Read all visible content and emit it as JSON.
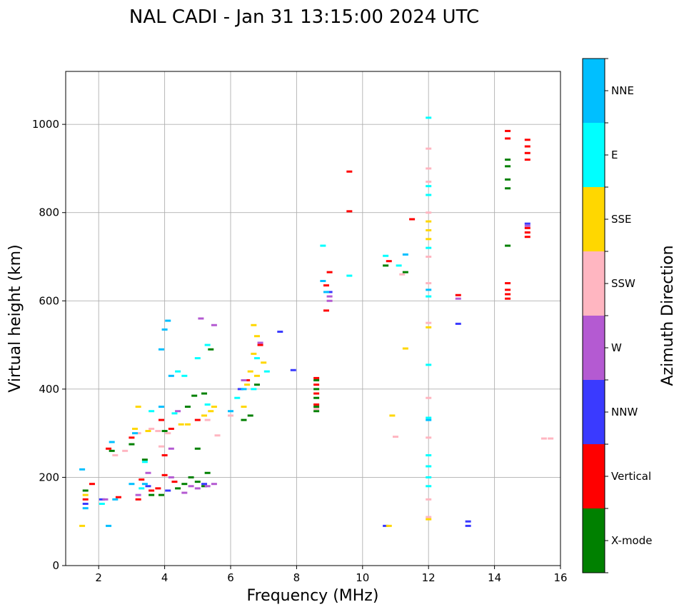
{
  "chart_data": {
    "type": "scatter",
    "title": "NAL CADI - Jan 31 13:15:00 2024 UTC",
    "xlabel": "Frequency (MHz)",
    "ylabel": "Virtual height (km)",
    "xlim": [
      1,
      16
    ],
    "ylim": [
      0,
      1120
    ],
    "xticks": [
      2,
      4,
      6,
      8,
      10,
      12,
      14,
      16
    ],
    "yticks": [
      0,
      200,
      400,
      600,
      800,
      1000
    ],
    "grid": true,
    "colorbar": {
      "label": "Azimuth Direction",
      "categories": [
        {
          "name": "X-mode",
          "color": "#008000"
        },
        {
          "name": "Vertical",
          "color": "#ff0000"
        },
        {
          "name": "NNW",
          "color": "#3a3aff"
        },
        {
          "name": "W",
          "color": "#b45ad2"
        },
        {
          "name": "SSW",
          "color": "#ffb6c1"
        },
        {
          "name": "SSE",
          "color": "#ffd700"
        },
        {
          "name": "E",
          "color": "#00ffff"
        },
        {
          "name": "NNE",
          "color": "#00bfff"
        }
      ]
    },
    "series": [
      {
        "name": "X-mode",
        "points": [
          [
            1.6,
            170
          ],
          [
            2.4,
            260
          ],
          [
            3.0,
            275
          ],
          [
            3.4,
            240
          ],
          [
            3.9,
            160
          ],
          [
            4.4,
            175
          ],
          [
            4.6,
            185
          ],
          [
            4.8,
            200
          ],
          [
            5.0,
            190
          ],
          [
            5.2,
            180
          ],
          [
            5.3,
            210
          ],
          [
            4.7,
            360
          ],
          [
            4.9,
            385
          ],
          [
            5.2,
            390
          ],
          [
            5.4,
            490
          ],
          [
            6.4,
            330
          ],
          [
            6.6,
            340
          ],
          [
            6.8,
            410
          ],
          [
            8.6,
            360
          ],
          [
            8.6,
            380
          ],
          [
            8.6,
            400
          ],
          [
            8.6,
            420
          ],
          [
            8.6,
            350
          ],
          [
            10.7,
            680
          ],
          [
            11.3,
            665
          ],
          [
            14.4,
            855
          ],
          [
            14.4,
            875
          ],
          [
            14.4,
            905
          ],
          [
            14.4,
            920
          ],
          [
            14.4,
            725
          ],
          [
            5.0,
            265
          ],
          [
            4.0,
            305
          ],
          [
            3.6,
            160
          ]
        ]
      },
      {
        "name": "Vertical",
        "points": [
          [
            1.6,
            150
          ],
          [
            1.8,
            185
          ],
          [
            2.3,
            265
          ],
          [
            2.6,
            155
          ],
          [
            3.0,
            290
          ],
          [
            3.3,
            195
          ],
          [
            3.6,
            170
          ],
          [
            3.8,
            175
          ],
          [
            4.0,
            205
          ],
          [
            4.0,
            250
          ],
          [
            4.2,
            310
          ],
          [
            4.3,
            190
          ],
          [
            3.9,
            330
          ],
          [
            5.0,
            330
          ],
          [
            6.5,
            420
          ],
          [
            6.9,
            500
          ],
          [
            8.6,
            365
          ],
          [
            8.6,
            390
          ],
          [
            8.6,
            410
          ],
          [
            8.6,
            425
          ],
          [
            8.9,
            635
          ],
          [
            9.0,
            665
          ],
          [
            8.9,
            578
          ],
          [
            9.6,
            893
          ],
          [
            9.6,
            803
          ],
          [
            10.8,
            690
          ],
          [
            11.5,
            785
          ],
          [
            12.9,
            613
          ],
          [
            14.4,
            605
          ],
          [
            14.4,
            615
          ],
          [
            14.4,
            625
          ],
          [
            14.4,
            640
          ],
          [
            14.4,
            968
          ],
          [
            14.4,
            985
          ],
          [
            15.0,
            920
          ],
          [
            15.0,
            935
          ],
          [
            15.0,
            950
          ],
          [
            15.0,
            965
          ],
          [
            15.0,
            745
          ],
          [
            15.0,
            755
          ],
          [
            15.0,
            765
          ],
          [
            3.2,
            150
          ]
        ]
      },
      {
        "name": "NNW",
        "points": [
          [
            1.6,
            140
          ],
          [
            2.1,
            150
          ],
          [
            3.5,
            180
          ],
          [
            4.1,
            170
          ],
          [
            5.2,
            185
          ],
          [
            6.3,
            400
          ],
          [
            7.5,
            530
          ],
          [
            7.9,
            443
          ],
          [
            9.0,
            620
          ],
          [
            10.7,
            90
          ],
          [
            12.9,
            548
          ],
          [
            13.2,
            90
          ],
          [
            13.2,
            100
          ],
          [
            15.0,
            775
          ]
        ]
      },
      {
        "name": "W",
        "points": [
          [
            2.2,
            150
          ],
          [
            3.2,
            160
          ],
          [
            3.5,
            210
          ],
          [
            4.2,
            200
          ],
          [
            4.6,
            165
          ],
          [
            4.8,
            180
          ],
          [
            5.0,
            175
          ],
          [
            5.3,
            180
          ],
          [
            5.5,
            185
          ],
          [
            4.2,
            265
          ],
          [
            4.4,
            350
          ],
          [
            5.1,
            560
          ],
          [
            5.5,
            545
          ],
          [
            6.4,
            420
          ],
          [
            6.9,
            505
          ],
          [
            9.0,
            610
          ],
          [
            9.0,
            600
          ],
          [
            12.9,
            605
          ],
          [
            15.0,
            770
          ]
        ]
      },
      {
        "name": "SSW",
        "points": [
          [
            2.5,
            250
          ],
          [
            2.8,
            260
          ],
          [
            3.2,
            300
          ],
          [
            3.6,
            310
          ],
          [
            3.8,
            305
          ],
          [
            4.1,
            300
          ],
          [
            5.3,
            330
          ],
          [
            5.6,
            295
          ],
          [
            6.0,
            340
          ],
          [
            8.6,
            355
          ],
          [
            11.0,
            292
          ],
          [
            11.2,
            660
          ],
          [
            12.0,
            110
          ],
          [
            12.0,
            150
          ],
          [
            12.0,
            290
          ],
          [
            12.0,
            380
          ],
          [
            12.0,
            550
          ],
          [
            12.0,
            640
          ],
          [
            12.0,
            700
          ],
          [
            12.0,
            800
          ],
          [
            12.0,
            870
          ],
          [
            12.0,
            900
          ],
          [
            12.0,
            945
          ],
          [
            15.5,
            288
          ],
          [
            15.7,
            288
          ],
          [
            3.9,
            270
          ]
        ]
      },
      {
        "name": "SSE",
        "points": [
          [
            1.5,
            90
          ],
          [
            1.6,
            160
          ],
          [
            3.1,
            310
          ],
          [
            3.2,
            360
          ],
          [
            3.5,
            305
          ],
          [
            4.5,
            320
          ],
          [
            4.7,
            320
          ],
          [
            5.2,
            340
          ],
          [
            5.4,
            350
          ],
          [
            5.5,
            360
          ],
          [
            6.4,
            360
          ],
          [
            6.5,
            410
          ],
          [
            6.6,
            440
          ],
          [
            6.8,
            430
          ],
          [
            6.7,
            480
          ],
          [
            6.8,
            520
          ],
          [
            6.7,
            545
          ],
          [
            7.0,
            460
          ],
          [
            10.8,
            90
          ],
          [
            10.9,
            340
          ],
          [
            11.3,
            492
          ],
          [
            12.0,
            105
          ],
          [
            12.0,
            540
          ],
          [
            12.0,
            740
          ],
          [
            12.0,
            760
          ],
          [
            12.0,
            780
          ]
        ]
      },
      {
        "name": "E",
        "points": [
          [
            2.1,
            140
          ],
          [
            3.3,
            175
          ],
          [
            3.6,
            350
          ],
          [
            4.3,
            345
          ],
          [
            4.4,
            440
          ],
          [
            4.6,
            430
          ],
          [
            5.0,
            470
          ],
          [
            5.3,
            500
          ],
          [
            5.3,
            365
          ],
          [
            6.2,
            380
          ],
          [
            6.7,
            400
          ],
          [
            6.8,
            470
          ],
          [
            7.1,
            440
          ],
          [
            8.8,
            725
          ],
          [
            9.6,
            657
          ],
          [
            10.7,
            702
          ],
          [
            11.1,
            680
          ],
          [
            12.0,
            1015
          ],
          [
            12.0,
            860
          ],
          [
            12.0,
            840
          ],
          [
            12.0,
            720
          ],
          [
            12.0,
            610
          ],
          [
            12.0,
            455
          ],
          [
            12.0,
            335
          ],
          [
            12.0,
            250
          ],
          [
            12.0,
            225
          ],
          [
            12.0,
            200
          ],
          [
            12.0,
            180
          ],
          [
            3.4,
            235
          ]
        ]
      },
      {
        "name": "NNE",
        "points": [
          [
            1.6,
            130
          ],
          [
            1.5,
            218
          ],
          [
            2.3,
            90
          ],
          [
            2.5,
            150
          ],
          [
            2.4,
            280
          ],
          [
            3.0,
            185
          ],
          [
            3.1,
            300
          ],
          [
            3.4,
            185
          ],
          [
            3.9,
            490
          ],
          [
            4.0,
            535
          ],
          [
            4.1,
            555
          ],
          [
            4.2,
            430
          ],
          [
            3.9,
            360
          ],
          [
            6.0,
            350
          ],
          [
            6.4,
            400
          ],
          [
            8.8,
            645
          ],
          [
            8.9,
            620
          ],
          [
            11.3,
            705
          ],
          [
            12.0,
            625
          ],
          [
            12.0,
            330
          ]
        ]
      }
    ]
  }
}
